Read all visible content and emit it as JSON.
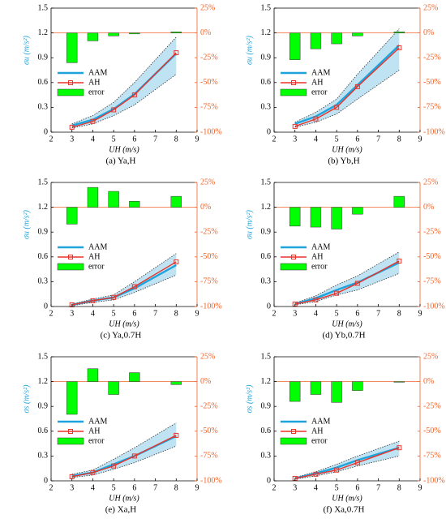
{
  "chart_data": [
    {
      "type": "line",
      "caption": "(a) Ya,H",
      "x_label": "UH (m/s)",
      "y_label": "σu (m/s²)",
      "x": [
        3,
        4,
        5,
        6,
        8
      ],
      "series": [
        {
          "name": "AAM",
          "color": "#1ea3dc",
          "values": [
            0.08,
            0.15,
            0.28,
            0.46,
            0.95
          ]
        },
        {
          "name": "AH",
          "color": "#e8332a",
          "values": [
            0.06,
            0.13,
            0.27,
            0.45,
            0.96
          ]
        },
        {
          "name": "error",
          "color": "#00ff00",
          "axis": "y2",
          "values": [
            -30,
            -8,
            -3,
            -1,
            1
          ]
        }
      ],
      "band": {
        "color": "#bfe3f3",
        "lower": [
          0.05,
          0.1,
          0.2,
          0.33,
          0.7
        ],
        "upper": [
          0.1,
          0.2,
          0.36,
          0.6,
          1.15
        ]
      },
      "xlim": [
        2,
        9
      ],
      "xticks": [
        2,
        3,
        4,
        5,
        6,
        7,
        8,
        9
      ],
      "ylim": [
        0,
        1.5
      ],
      "yticks": [
        0,
        0.3,
        0.6,
        0.9,
        1.2,
        1.5
      ],
      "y2lim": [
        -100,
        25
      ],
      "y2ticks": [
        {
          "value": -100,
          "label": "-100%"
        },
        {
          "value": -75,
          "label": "-75%"
        },
        {
          "value": -50,
          "label": "-50%"
        },
        {
          "value": -25,
          "label": "-25%"
        },
        {
          "value": 0,
          "label": "0%"
        },
        {
          "value": 25,
          "label": "25%"
        }
      ]
    },
    {
      "type": "line",
      "caption": "(b) Yb,H",
      "x_label": "UH (m/s)",
      "y_label": "σu (m/s²)",
      "x": [
        3,
        4,
        5,
        6,
        8
      ],
      "series": [
        {
          "name": "AAM",
          "color": "#1ea3dc",
          "values": [
            0.1,
            0.19,
            0.33,
            0.57,
            1.05
          ]
        },
        {
          "name": "AH",
          "color": "#e8332a",
          "values": [
            0.07,
            0.16,
            0.3,
            0.55,
            1.02
          ]
        },
        {
          "name": "error",
          "color": "#00ff00",
          "axis": "y2",
          "values": [
            -27,
            -16,
            -11,
            -3,
            1
          ]
        }
      ],
      "band": {
        "color": "#bfe3f3",
        "lower": [
          0.06,
          0.12,
          0.22,
          0.4,
          0.75
        ],
        "upper": [
          0.12,
          0.24,
          0.4,
          0.7,
          1.25
        ]
      },
      "xlim": [
        2,
        9
      ],
      "xticks": [
        2,
        3,
        4,
        5,
        6,
        7,
        8,
        9
      ],
      "ylim": [
        0,
        1.5
      ],
      "yticks": [
        0,
        0.3,
        0.6,
        0.9,
        1.2,
        1.5
      ],
      "y2lim": [
        -100,
        25
      ],
      "y2ticks": [
        {
          "value": -100,
          "label": "-100%"
        },
        {
          "value": -75,
          "label": "-75%"
        },
        {
          "value": -50,
          "label": "-50%"
        },
        {
          "value": -25,
          "label": "-25%"
        },
        {
          "value": 0,
          "label": "0%"
        },
        {
          "value": 25,
          "label": "25%"
        }
      ]
    },
    {
      "type": "line",
      "caption": "(c) Ya,0.7H",
      "x_label": "UH (m/s)",
      "y_label": "σu (m/s²)",
      "x": [
        3,
        4,
        5,
        6,
        8
      ],
      "series": [
        {
          "name": "AAM",
          "color": "#1ea3dc",
          "values": [
            0.02,
            0.07,
            0.11,
            0.22,
            0.5
          ]
        },
        {
          "name": "AH",
          "color": "#e8332a",
          "values": [
            0.02,
            0.07,
            0.11,
            0.24,
            0.54
          ]
        },
        {
          "name": "error",
          "color": "#00ff00",
          "axis": "y2",
          "values": [
            -17,
            20,
            16,
            6,
            11
          ]
        }
      ],
      "band": {
        "color": "#bfe3f3",
        "lower": [
          0.01,
          0.05,
          0.08,
          0.17,
          0.38
        ],
        "upper": [
          0.03,
          0.09,
          0.14,
          0.3,
          0.64
        ]
      },
      "xlim": [
        2,
        9
      ],
      "xticks": [
        2,
        3,
        4,
        5,
        6,
        7,
        8,
        9
      ],
      "ylim": [
        0,
        1.5
      ],
      "yticks": [
        0,
        0.3,
        0.6,
        0.9,
        1.2,
        1.5
      ],
      "y2lim": [
        -100,
        25
      ],
      "y2ticks": [
        {
          "value": -100,
          "label": "-100%"
        },
        {
          "value": -75,
          "label": "-75%"
        },
        {
          "value": -50,
          "label": "-50%"
        },
        {
          "value": -25,
          "label": "-25%"
        },
        {
          "value": 0,
          "label": "0%"
        },
        {
          "value": 25,
          "label": "25%"
        }
      ]
    },
    {
      "type": "line",
      "caption": "(d) Yb,0.7H",
      "x_label": "UH (m/s)",
      "y_label": "σu (m/s²)",
      "x": [
        3,
        4,
        5,
        6,
        8
      ],
      "series": [
        {
          "name": "AAM",
          "color": "#1ea3dc",
          "values": [
            0.03,
            0.1,
            0.2,
            0.29,
            0.53
          ]
        },
        {
          "name": "AH",
          "color": "#e8332a",
          "values": [
            0.03,
            0.08,
            0.16,
            0.28,
            0.55
          ]
        },
        {
          "name": "error",
          "color": "#00ff00",
          "axis": "y2",
          "values": [
            -19,
            -20,
            -22,
            -7,
            11
          ]
        }
      ],
      "band": {
        "color": "#bfe3f3",
        "lower": [
          0.02,
          0.06,
          0.14,
          0.2,
          0.4
        ],
        "upper": [
          0.04,
          0.13,
          0.26,
          0.37,
          0.66
        ]
      },
      "xlim": [
        2,
        9
      ],
      "xticks": [
        2,
        3,
        4,
        5,
        6,
        7,
        8,
        9
      ],
      "ylim": [
        0,
        1.5
      ],
      "yticks": [
        0,
        0.3,
        0.6,
        0.9,
        1.2,
        1.5
      ],
      "y2lim": [
        -100,
        25
      ],
      "y2ticks": [
        {
          "value": -100,
          "label": "-100%"
        },
        {
          "value": -75,
          "label": "-75%"
        },
        {
          "value": -50,
          "label": "-50%"
        },
        {
          "value": -25,
          "label": "-25%"
        },
        {
          "value": 0,
          "label": "0%"
        },
        {
          "value": 25,
          "label": "25%"
        }
      ]
    },
    {
      "type": "line",
      "caption": "(e) Xa,H",
      "x_label": "UH (m/s)",
      "y_label": "σs (m/s²)",
      "x": [
        3,
        4,
        5,
        6,
        8
      ],
      "series": [
        {
          "name": "AAM",
          "color": "#1ea3dc",
          "values": [
            0.06,
            0.1,
            0.2,
            0.3,
            0.54
          ]
        },
        {
          "name": "AH",
          "color": "#e8332a",
          "values": [
            0.05,
            0.1,
            0.18,
            0.3,
            0.55
          ]
        },
        {
          "name": "error",
          "color": "#00ff00",
          "axis": "y2",
          "values": [
            -33,
            13,
            -13,
            9,
            -3
          ]
        }
      ],
      "band": {
        "color": "#bfe3f3",
        "lower": [
          0.04,
          0.07,
          0.14,
          0.22,
          0.42
        ],
        "upper": [
          0.08,
          0.13,
          0.26,
          0.4,
          0.7
        ]
      },
      "xlim": [
        2,
        9
      ],
      "xticks": [
        2,
        3,
        4,
        5,
        6,
        7,
        8,
        9
      ],
      "ylim": [
        0,
        1.5
      ],
      "yticks": [
        0,
        0.3,
        0.6,
        0.9,
        1.2,
        1.5
      ],
      "y2lim": [
        -100,
        25
      ],
      "y2ticks": [
        {
          "value": -100,
          "label": "-100%"
        },
        {
          "value": -75,
          "label": "-75%"
        },
        {
          "value": -50,
          "label": "-50%"
        },
        {
          "value": -25,
          "label": "-25%"
        },
        {
          "value": 0,
          "label": "0%"
        },
        {
          "value": 25,
          "label": "25%"
        }
      ]
    },
    {
      "type": "line",
      "caption": "(f) Xa,0.7H",
      "x_label": "UH (m/s)",
      "y_label": "σs (m/s²)",
      "x": [
        3,
        4,
        5,
        6,
        8
      ],
      "series": [
        {
          "name": "AAM",
          "color": "#1ea3dc",
          "values": [
            0.03,
            0.09,
            0.16,
            0.25,
            0.4
          ]
        },
        {
          "name": "AH",
          "color": "#e8332a",
          "values": [
            0.03,
            0.08,
            0.13,
            0.22,
            0.4
          ]
        },
        {
          "name": "error",
          "color": "#00ff00",
          "axis": "y2",
          "values": [
            -20,
            -13,
            -21,
            -9,
            0
          ]
        }
      ],
      "band": {
        "color": "#bfe3f3",
        "lower": [
          0.02,
          0.06,
          0.11,
          0.18,
          0.3
        ],
        "upper": [
          0.04,
          0.11,
          0.2,
          0.3,
          0.48
        ]
      },
      "xlim": [
        2,
        9
      ],
      "xticks": [
        2,
        3,
        4,
        5,
        6,
        7,
        8,
        9
      ],
      "ylim": [
        0,
        1.5
      ],
      "yticks": [
        0,
        0.3,
        0.6,
        0.9,
        1.2,
        1.5
      ],
      "y2lim": [
        -100,
        25
      ],
      "y2ticks": [
        {
          "value": -100,
          "label": "-100%"
        },
        {
          "value": -75,
          "label": "-75%"
        },
        {
          "value": -50,
          "label": "-50%"
        },
        {
          "value": -25,
          "label": "-25%"
        },
        {
          "value": 0,
          "label": "0%"
        },
        {
          "value": 25,
          "label": "25%"
        }
      ]
    }
  ]
}
